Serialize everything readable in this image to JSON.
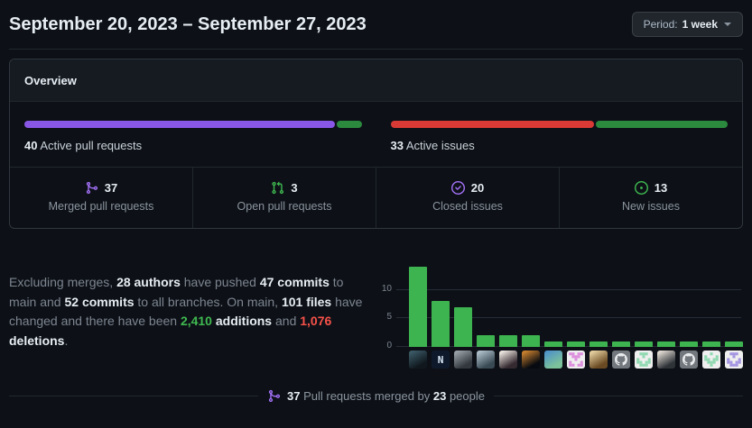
{
  "header": {
    "title": "September 20, 2023 – September 27, 2023",
    "period_button": {
      "prefix": "Period:",
      "value": "1 week"
    }
  },
  "overview": {
    "title": "Overview",
    "pr_bar": {
      "count": "40",
      "label": "Active pull requests",
      "segments": [
        {
          "name": "merged-pull-requests",
          "pct": 92.5,
          "color": "#8957e5"
        },
        {
          "name": "open-pull-requests",
          "pct": 7.5,
          "color": "#2b8a3e"
        }
      ]
    },
    "issue_bar": {
      "count": "33",
      "label": "Active issues",
      "segments": [
        {
          "name": "closed-issues",
          "pct": 60.6,
          "color": "#d93a35"
        },
        {
          "name": "new-issues",
          "pct": 39.4,
          "color": "#2b8a3e"
        }
      ]
    },
    "stats": [
      {
        "icon": "git-merge-icon",
        "icon_color": "#a371f7",
        "value": "37",
        "label": "Merged pull requests"
      },
      {
        "icon": "git-pull-request-icon",
        "icon_color": "#3fb950",
        "value": "3",
        "label": "Open pull requests"
      },
      {
        "icon": "issue-closed-icon",
        "icon_color": "#a371f7",
        "value": "20",
        "label": "Closed issues"
      },
      {
        "icon": "issue-opened-icon",
        "icon_color": "#3fb950",
        "value": "13",
        "label": "New issues"
      }
    ]
  },
  "summary": {
    "s1": "Excluding merges, ",
    "b1": "28 authors",
    "s2": " have pushed ",
    "b2": "47 commits",
    "s3": " to main and ",
    "b3": "52 commits",
    "s4": " to all branches. On main, ",
    "b4": "101 files",
    "s5": " have changed and there have been ",
    "additions_value": "2,410",
    "additions_label": " additions",
    "s6": " and ",
    "deletions_value": "1,076",
    "deletions_label": " deletions",
    "s7": "."
  },
  "chart_data": {
    "type": "bar",
    "title": "",
    "xlabel": "",
    "ylabel": "",
    "values": [
      14,
      8,
      7,
      2,
      2,
      2,
      1,
      1,
      1,
      1,
      1,
      1,
      1,
      1,
      1
    ],
    "yticks": [
      0,
      5,
      10
    ],
    "ylim": [
      0,
      15
    ],
    "bar_color": "#3eb450",
    "grid": true,
    "legend": "none",
    "x_is_author_avatars": true,
    "avatars": [
      {
        "kind": "photo",
        "c1": "#3b5a66",
        "c2": "#10181e"
      },
      {
        "kind": "logo",
        "text": "N",
        "bg": "#0e1a2b",
        "fg": "#d9e8f5"
      },
      {
        "kind": "photo",
        "c1": "#9aa2a8",
        "c2": "#32383e"
      },
      {
        "kind": "photo",
        "c1": "#aebfca",
        "c2": "#3a4a55"
      },
      {
        "kind": "photo",
        "c1": "#ece6e0",
        "c2": "#342a30"
      },
      {
        "kind": "photo",
        "c1": "#c9802e",
        "c2": "#070a10"
      },
      {
        "kind": "photo",
        "c1": "#4f93c8",
        "c2": "#7cc29a"
      },
      {
        "kind": "identicon",
        "fg": "#dd8fdd",
        "bg": "#efefef"
      },
      {
        "kind": "photo",
        "c1": "#e5cf9f",
        "c2": "#6a4a22"
      },
      {
        "kind": "octocat",
        "bg": "#72787d",
        "fg": "#e9ebed"
      },
      {
        "kind": "identicon",
        "fg": "#90d9b1",
        "bg": "#efefef"
      },
      {
        "kind": "photo",
        "c1": "#e2dbd3",
        "c2": "#2e3338"
      },
      {
        "kind": "octocat",
        "bg": "#72787d",
        "fg": "#e9ebed"
      },
      {
        "kind": "identicon",
        "fg": "#90d9b1",
        "bg": "#efefef"
      },
      {
        "kind": "identicon",
        "fg": "#a495e2",
        "bg": "#efefef"
      }
    ]
  },
  "footer": {
    "icon": "git-merge-icon",
    "icon_color": "#a371f7",
    "count": "37",
    "t1": " Pull requests merged by ",
    "people": "23",
    "t2": " people"
  }
}
